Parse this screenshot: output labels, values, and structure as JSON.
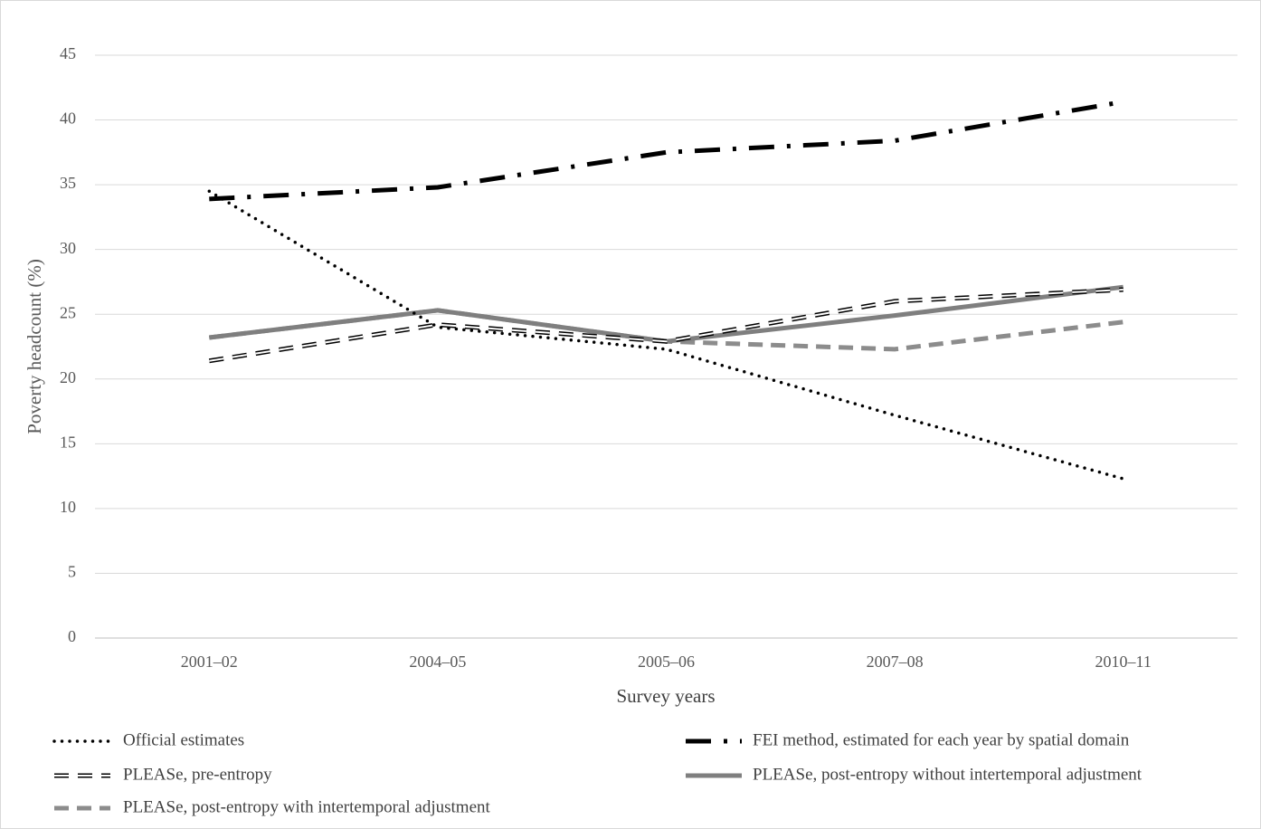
{
  "chart_data": {
    "type": "line",
    "x_label": "Survey years",
    "y_label": "Poverty headcount (%)",
    "categories": [
      "2001–02",
      "2004–05",
      "2005–06",
      "2007–08",
      "2010–11"
    ],
    "ylim": [
      0,
      45
    ],
    "yticks": [
      0,
      5,
      10,
      15,
      20,
      25,
      30,
      35,
      40,
      45
    ],
    "grid": true,
    "series": [
      {
        "name": "PLEASe, post-entropy with intertemporal adjustment",
        "color": "#8c8c8c",
        "line_style": "dashed",
        "values": [
          23.2,
          25.3,
          22.9,
          22.3,
          24.4
        ]
      },
      {
        "name": "PLEASe, post-entropy without intertemporal adjustment",
        "color": "#7f7f7f",
        "line_style": "solid",
        "values": [
          23.2,
          25.3,
          22.9,
          24.9,
          27.1
        ]
      },
      {
        "name": "PLEASe, pre-entropy",
        "color": "#000000",
        "line_style": "outlined-dash",
        "values": [
          21.4,
          24.2,
          22.9,
          26.0,
          26.9
        ]
      },
      {
        "name": "Official estimates",
        "color": "#000000",
        "line_style": "dotted",
        "values": [
          34.5,
          24.0,
          22.3,
          17.2,
          12.3
        ]
      },
      {
        "name": "FEI method, estimated for each year by spatial domain",
        "color": "#000000",
        "line_style": "dash-dot",
        "values": [
          33.9,
          34.8,
          37.5,
          38.4,
          41.4
        ]
      }
    ]
  }
}
